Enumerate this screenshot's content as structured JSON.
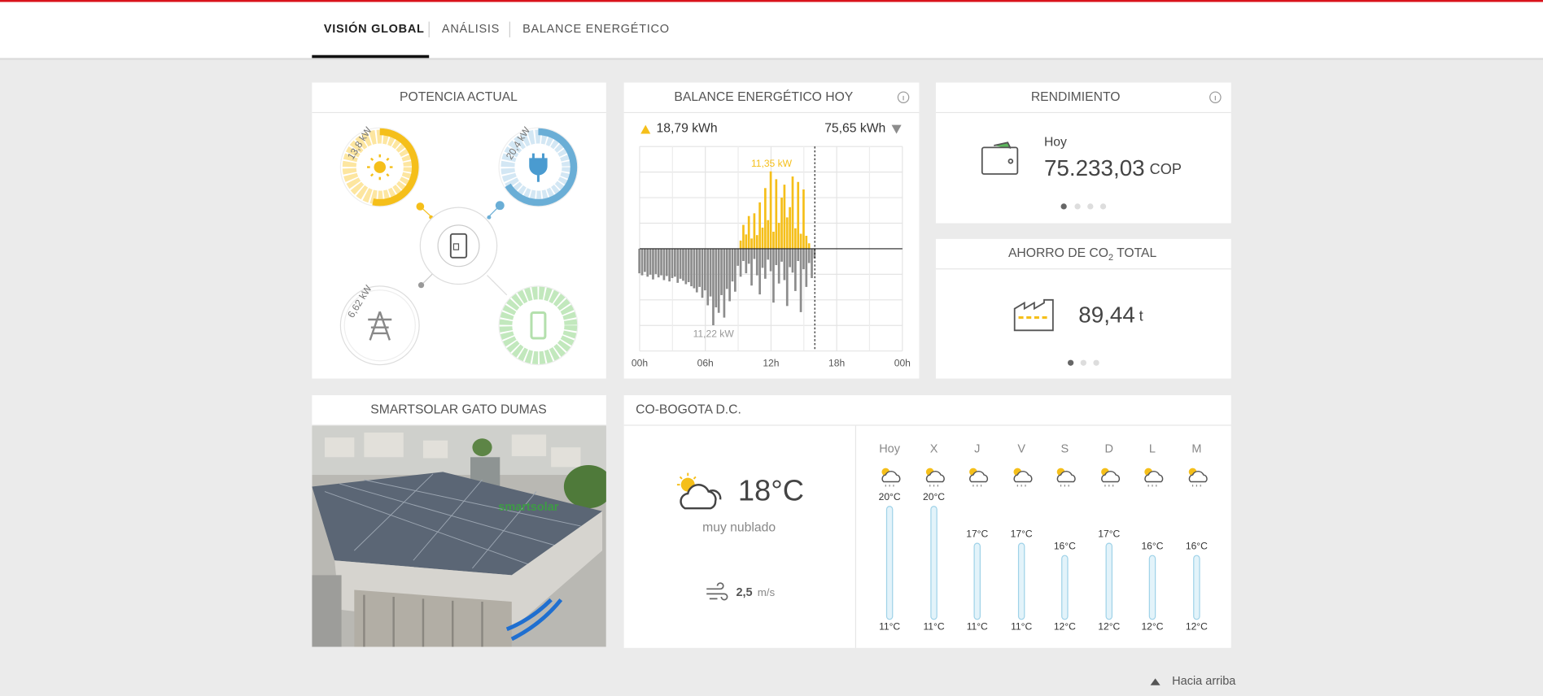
{
  "nav": {
    "tabs": [
      "VISIÓN GLOBAL",
      "ANÁLISIS",
      "BALANCE ENERGÉTICO"
    ]
  },
  "potencia": {
    "title": "POTENCIA ACTUAL",
    "pv": "13,8 kW",
    "load": "20,4 kW",
    "grid": "6,62 kW"
  },
  "balance": {
    "title": "BALANCE ENERGÉTICO HOY",
    "produced": "18,79 kWh",
    "consumed": "75,65 kWh",
    "peak_label": "11,35 kW",
    "min_label": "11,22 kW",
    "chart": {
      "type": "bar",
      "x": [
        0,
        0.25,
        0.5,
        0.75,
        1,
        1.25,
        1.5,
        1.75,
        2,
        2.25,
        2.5,
        2.75,
        3,
        3.25,
        3.5,
        3.75,
        4,
        4.25,
        4.5,
        4.75,
        5,
        5.25,
        5.5,
        5.75,
        6,
        6.25,
        6.5,
        6.75,
        7,
        7.25,
        7.5,
        7.75,
        8,
        8.25,
        8.5,
        8.75,
        9,
        9.25,
        9.5,
        9.75,
        10,
        10.25,
        10.5,
        10.75,
        11,
        11.25,
        11.5,
        11.75,
        12,
        12.25,
        12.5,
        12.75,
        13,
        13.25,
        13.5,
        13.75,
        14,
        14.25,
        14.5,
        14.75,
        15,
        15.25,
        15.5,
        15.75,
        16
      ],
      "series": [
        {
          "color": "#f5bf1a",
          "values": [
            0,
            0,
            0,
            0,
            0,
            0,
            0,
            0,
            0,
            0,
            0,
            0,
            0,
            0,
            0,
            0,
            0,
            0,
            0,
            0,
            0,
            0,
            0,
            0,
            0,
            0,
            0,
            0,
            0,
            0,
            0,
            0,
            0,
            0,
            0,
            0,
            0,
            1.2,
            3.5,
            2.1,
            4.8,
            1.5,
            5.2,
            2.0,
            6.8,
            3.1,
            8.9,
            4.2,
            11.35,
            2.5,
            10.2,
            3.8,
            7.5,
            9.4,
            4.6,
            6.1,
            10.6,
            3.0,
            9.8,
            2.2,
            8.7,
            1.9,
            0.8,
            0,
            0
          ]
        },
        {
          "color": "#8c8c8c",
          "values": [
            -3.6,
            -3.9,
            -3.4,
            -4.1,
            -3.8,
            -4.5,
            -3.7,
            -4.2,
            -3.9,
            -4.6,
            -4.0,
            -4.8,
            -4.3,
            -4.1,
            -5.0,
            -4.4,
            -4.7,
            -5.2,
            -4.9,
            -5.5,
            -5.8,
            -6.4,
            -5.6,
            -7.2,
            -6.1,
            -8.3,
            -7.0,
            -11.22,
            -8.6,
            -9.4,
            -6.8,
            -10.1,
            -5.9,
            -7.7,
            -4.8,
            -6.3,
            -2.5,
            -4.1,
            -1.8,
            -3.6,
            -2.2,
            -5.4,
            -1.5,
            -3.9,
            -6.7,
            -2.8,
            -4.4,
            -1.6,
            -3.3,
            -7.9,
            -2.4,
            -5.1,
            -1.9,
            -4.6,
            -8.4,
            -2.7,
            -3.5,
            -6.2,
            -1.8,
            -9.3,
            -3.0,
            -5.6,
            -2.1,
            -4.3,
            -1.4
          ]
        }
      ],
      "xlim": [
        0,
        24
      ],
      "ylim": [
        -15,
        15
      ],
      "xticks": [
        {
          "value": 0,
          "label": "00h"
        },
        {
          "value": 6,
          "label": "06h"
        },
        {
          "value": 12,
          "label": "12h"
        },
        {
          "value": 18,
          "label": "18h"
        },
        {
          "value": 24,
          "label": "00h"
        }
      ],
      "yticks": [
        -15,
        -11.25,
        -7.5,
        -3.75,
        0,
        3.75,
        7.5,
        11.25,
        15
      ],
      "grid": true
    }
  },
  "rendimiento": {
    "title": "RENDIMIENTO",
    "period": "Hoy",
    "value": "75.233,03",
    "unit": "COP"
  },
  "co2": {
    "title": "AHORRO DE CO",
    "title_sub": "2",
    "title_end": " TOTAL",
    "value": "89,44",
    "unit": "t"
  },
  "site": {
    "title": "SMARTSOLAR GATO DUMAS",
    "logo": "smartsolar"
  },
  "weather": {
    "location": "CO-BOGOTA D.C.",
    "temp": "18°C",
    "condition": "muy nublado",
    "wind": "2,5",
    "wind_unit": "m/s",
    "forecast": [
      {
        "day": "Hoy",
        "high": 20,
        "high_label": "20°C",
        "low_label": "11°C"
      },
      {
        "day": "X",
        "high": 20,
        "high_label": "20°C",
        "low_label": "11°C"
      },
      {
        "day": "J",
        "high": 17,
        "high_label": "17°C",
        "low_label": "11°C"
      },
      {
        "day": "V",
        "high": 17,
        "high_label": "17°C",
        "low_label": "11°C"
      },
      {
        "day": "S",
        "high": 16,
        "high_label": "16°C",
        "low_label": "12°C"
      },
      {
        "day": "D",
        "high": 17,
        "high_label": "17°C",
        "low_label": "12°C"
      },
      {
        "day": "L",
        "high": 16,
        "high_label": "16°C",
        "low_label": "12°C"
      },
      {
        "day": "M",
        "high": 16,
        "high_label": "16°C",
        "low_label": "12°C"
      }
    ]
  },
  "footer": {
    "top_link": "Hacia arriba"
  }
}
